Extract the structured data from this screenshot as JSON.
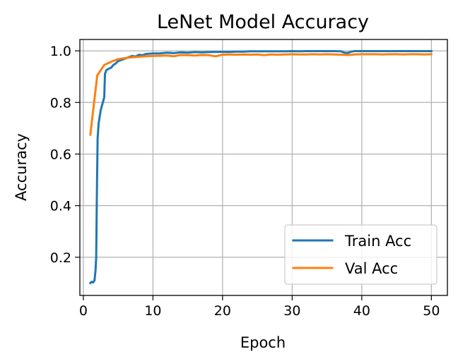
{
  "chart_data": {
    "type": "line",
    "title": "LeNet Model Accuracy",
    "xlabel": "Epoch",
    "ylabel": "Accuracy",
    "xlim": [
      -0.5,
      52.3
    ],
    "ylim": [
      0.052,
      1.044
    ],
    "xticks": [
      0,
      10,
      20,
      30,
      40,
      50
    ],
    "yticks": [
      0.2,
      0.4,
      0.6,
      0.8,
      1.0
    ],
    "xtick_labels": [
      "0",
      "10",
      "20",
      "30",
      "40",
      "50"
    ],
    "ytick_labels": [
      "0.2",
      "0.4",
      "0.6",
      "0.8",
      "1.0"
    ],
    "grid": true,
    "legend_position": "lower right",
    "series": [
      {
        "name": "Train Acc",
        "color": "#1f77b4",
        "points": [
          [
            1,
            0.1
          ],
          [
            1.2,
            0.105
          ],
          [
            1.4,
            0.102
          ],
          [
            1.6,
            0.11
          ],
          [
            1.75,
            0.15
          ],
          [
            1.85,
            0.2
          ],
          [
            1.95,
            0.45
          ],
          [
            2.05,
            0.66
          ],
          [
            2.2,
            0.72
          ],
          [
            2.5,
            0.77
          ],
          [
            2.8,
            0.8
          ],
          [
            3.0,
            0.82
          ],
          [
            3.1,
            0.91
          ],
          [
            3.3,
            0.925
          ],
          [
            3.6,
            0.93
          ],
          [
            4.0,
            0.935
          ],
          [
            4.3,
            0.945
          ],
          [
            4.6,
            0.95
          ],
          [
            5.0,
            0.96
          ],
          [
            5.5,
            0.965
          ],
          [
            6.0,
            0.97
          ],
          [
            6.5,
            0.975
          ],
          [
            7.0,
            0.98
          ],
          [
            7.5,
            0.978
          ],
          [
            8.0,
            0.985
          ],
          [
            8.5,
            0.983
          ],
          [
            9.0,
            0.988
          ],
          [
            10.0,
            0.99
          ],
          [
            11.0,
            0.99
          ],
          [
            12.0,
            0.993
          ],
          [
            13.0,
            0.991
          ],
          [
            14.0,
            0.994
          ],
          [
            15.0,
            0.993
          ],
          [
            16.0,
            0.995
          ],
          [
            17.0,
            0.994
          ],
          [
            18.0,
            0.995
          ],
          [
            19.0,
            0.996
          ],
          [
            20.0,
            0.996
          ],
          [
            21.0,
            0.996
          ],
          [
            22.0,
            0.997
          ],
          [
            23.0,
            0.997
          ],
          [
            24.0,
            0.998
          ],
          [
            25.0,
            0.998
          ],
          [
            26.0,
            0.998
          ],
          [
            27.0,
            0.998
          ],
          [
            28.0,
            0.998
          ],
          [
            29.0,
            0.998
          ],
          [
            30.0,
            0.999
          ],
          [
            31.0,
            0.998
          ],
          [
            32.0,
            0.999
          ],
          [
            33.0,
            0.999
          ],
          [
            34.0,
            0.999
          ],
          [
            35.0,
            0.999
          ],
          [
            36.0,
            0.999
          ],
          [
            37.0,
            0.998
          ],
          [
            37.5,
            0.993
          ],
          [
            38.0,
            0.992
          ],
          [
            38.5,
            0.997
          ],
          [
            39.0,
            0.999
          ],
          [
            40.0,
            0.999
          ],
          [
            41.0,
            0.999
          ],
          [
            42.0,
            0.999
          ],
          [
            43.0,
            0.999
          ],
          [
            44.0,
            0.999
          ],
          [
            45.0,
            0.999
          ],
          [
            46.0,
            0.999
          ],
          [
            47.0,
            0.999
          ],
          [
            48.0,
            0.999
          ],
          [
            49.0,
            0.999
          ],
          [
            50.0,
            0.999
          ]
        ]
      },
      {
        "name": "Val Acc",
        "color": "#ff7f0e",
        "points": [
          [
            1,
            0.675
          ],
          [
            2,
            0.905
          ],
          [
            3,
            0.945
          ],
          [
            4,
            0.958
          ],
          [
            5,
            0.968
          ],
          [
            6,
            0.972
          ],
          [
            7,
            0.975
          ],
          [
            8,
            0.977
          ],
          [
            9,
            0.979
          ],
          [
            10,
            0.98
          ],
          [
            11,
            0.981
          ],
          [
            12,
            0.982
          ],
          [
            13,
            0.979
          ],
          [
            14,
            0.984
          ],
          [
            15,
            0.983
          ],
          [
            16,
            0.982
          ],
          [
            17,
            0.984
          ],
          [
            18,
            0.983
          ],
          [
            19,
            0.979
          ],
          [
            20,
            0.985
          ],
          [
            21,
            0.986
          ],
          [
            22,
            0.985
          ],
          [
            23,
            0.986
          ],
          [
            24,
            0.985
          ],
          [
            25,
            0.986
          ],
          [
            26,
            0.983
          ],
          [
            27,
            0.986
          ],
          [
            28,
            0.985
          ],
          [
            29,
            0.986
          ],
          [
            30,
            0.987
          ],
          [
            31,
            0.986
          ],
          [
            32,
            0.986
          ],
          [
            33,
            0.987
          ],
          [
            34,
            0.986
          ],
          [
            35,
            0.987
          ],
          [
            36,
            0.986
          ],
          [
            37,
            0.985
          ],
          [
            38,
            0.984
          ],
          [
            39,
            0.986
          ],
          [
            40,
            0.987
          ],
          [
            41,
            0.987
          ],
          [
            42,
            0.987
          ],
          [
            43,
            0.986
          ],
          [
            44,
            0.987
          ],
          [
            45,
            0.987
          ],
          [
            46,
            0.986
          ],
          [
            47,
            0.987
          ],
          [
            48,
            0.987
          ],
          [
            49,
            0.986
          ],
          [
            50,
            0.987
          ]
        ]
      }
    ]
  }
}
